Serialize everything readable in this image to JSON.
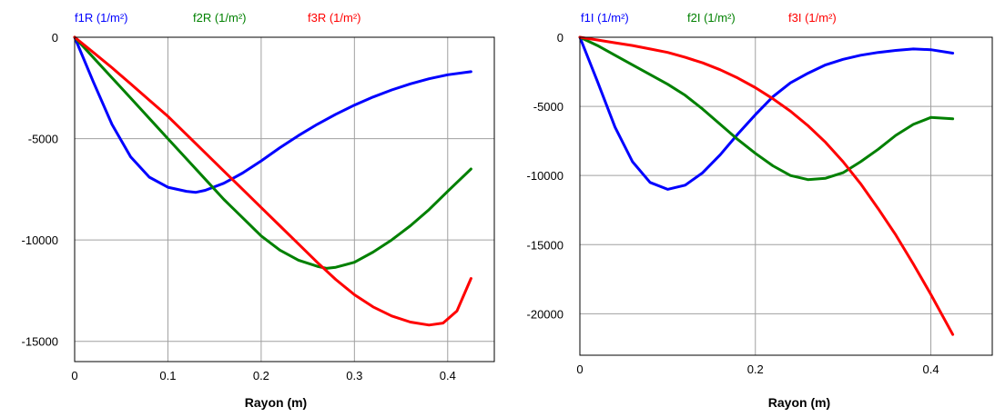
{
  "chart_data": [
    {
      "type": "line",
      "xlabel": "Rayon (m)",
      "ylabel": "",
      "xlim": [
        0,
        0.45
      ],
      "ylim": [
        -16000,
        0
      ],
      "x_ticks": [
        "0",
        "0.1",
        "0.2",
        "0.3",
        "0.4"
      ],
      "y_ticks": [
        "0",
        "-5000",
        "-10000",
        "-15000"
      ],
      "grid": true,
      "legend_position": "top",
      "series": [
        {
          "name": "f1R (1/m²)",
          "color": "#0000ff",
          "x": [
            0,
            0.02,
            0.04,
            0.06,
            0.08,
            0.1,
            0.12,
            0.13,
            0.14,
            0.16,
            0.18,
            0.2,
            0.22,
            0.24,
            0.26,
            0.28,
            0.3,
            0.32,
            0.34,
            0.36,
            0.38,
            0.4,
            0.425
          ],
          "y": [
            0,
            -2200,
            -4300,
            -5900,
            -6900,
            -7400,
            -7600,
            -7650,
            -7550,
            -7200,
            -6700,
            -6100,
            -5450,
            -4850,
            -4300,
            -3800,
            -3350,
            -2950,
            -2600,
            -2300,
            -2050,
            -1850,
            -1700
          ]
        },
        {
          "name": "f2R (1/m²)",
          "color": "#008000",
          "x": [
            0,
            0.02,
            0.04,
            0.06,
            0.08,
            0.1,
            0.12,
            0.14,
            0.16,
            0.18,
            0.2,
            0.22,
            0.24,
            0.26,
            0.27,
            0.28,
            0.3,
            0.32,
            0.34,
            0.36,
            0.38,
            0.4,
            0.425
          ],
          "y": [
            0,
            -1000,
            -2000,
            -3000,
            -4000,
            -5000,
            -6000,
            -7000,
            -8000,
            -8900,
            -9800,
            -10500,
            -11000,
            -11300,
            -11400,
            -11350,
            -11100,
            -10600,
            -10000,
            -9300,
            -8500,
            -7600,
            -6500
          ]
        },
        {
          "name": "f3R (1/m²)",
          "color": "#ff0000",
          "x": [
            0,
            0.02,
            0.04,
            0.06,
            0.08,
            0.1,
            0.12,
            0.14,
            0.16,
            0.18,
            0.2,
            0.22,
            0.24,
            0.26,
            0.28,
            0.3,
            0.32,
            0.34,
            0.36,
            0.38,
            0.395,
            0.41,
            0.425
          ],
          "y": [
            0,
            -750,
            -1500,
            -2300,
            -3100,
            -3900,
            -4800,
            -5700,
            -6600,
            -7500,
            -8400,
            -9300,
            -10200,
            -11100,
            -11950,
            -12700,
            -13300,
            -13750,
            -14050,
            -14200,
            -14100,
            -13500,
            -11900
          ]
        }
      ]
    },
    {
      "type": "line",
      "xlabel": "Rayon (m)",
      "ylabel": "",
      "xlim": [
        0,
        0.47
      ],
      "ylim": [
        -23000,
        0
      ],
      "x_ticks": [
        "0",
        "0.2",
        "0.4"
      ],
      "y_ticks": [
        "0",
        "-5000",
        "-10000",
        "-15000",
        "-20000"
      ],
      "grid": true,
      "legend_position": "top",
      "series": [
        {
          "name": "f1I (1/m²)",
          "color": "#0000ff",
          "x": [
            0,
            0.02,
            0.04,
            0.06,
            0.08,
            0.1,
            0.12,
            0.14,
            0.16,
            0.18,
            0.2,
            0.22,
            0.24,
            0.26,
            0.28,
            0.3,
            0.32,
            0.34,
            0.36,
            0.38,
            0.4,
            0.425
          ],
          "y": [
            0,
            -3200,
            -6500,
            -9000,
            -10500,
            -11000,
            -10700,
            -9800,
            -8500,
            -7000,
            -5600,
            -4300,
            -3300,
            -2600,
            -2000,
            -1600,
            -1300,
            -1100,
            -950,
            -850,
            -900,
            -1150
          ]
        },
        {
          "name": "f2I (1/m²)",
          "color": "#008000",
          "x": [
            0,
            0.02,
            0.04,
            0.06,
            0.08,
            0.1,
            0.12,
            0.14,
            0.16,
            0.18,
            0.2,
            0.22,
            0.24,
            0.26,
            0.28,
            0.3,
            0.32,
            0.34,
            0.36,
            0.38,
            0.4,
            0.425
          ],
          "y": [
            0,
            -600,
            -1300,
            -2000,
            -2700,
            -3400,
            -4200,
            -5200,
            -6300,
            -7400,
            -8400,
            -9300,
            -10000,
            -10300,
            -10200,
            -9800,
            -9000,
            -8100,
            -7100,
            -6300,
            -5800,
            -5900
          ]
        },
        {
          "name": "f3I (1/m²)",
          "color": "#ff0000",
          "x": [
            0,
            0.02,
            0.04,
            0.06,
            0.08,
            0.1,
            0.12,
            0.14,
            0.16,
            0.18,
            0.2,
            0.22,
            0.24,
            0.26,
            0.28,
            0.3,
            0.32,
            0.34,
            0.36,
            0.38,
            0.4,
            0.425
          ],
          "y": [
            0,
            -200,
            -400,
            -600,
            -850,
            -1100,
            -1450,
            -1850,
            -2350,
            -2950,
            -3650,
            -4450,
            -5350,
            -6400,
            -7600,
            -9000,
            -10600,
            -12400,
            -14300,
            -16400,
            -18600,
            -21500
          ]
        }
      ]
    }
  ]
}
